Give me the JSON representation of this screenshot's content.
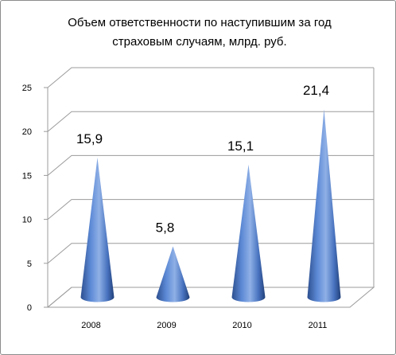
{
  "chart_data": {
    "type": "bar",
    "subtype": "3d-cone",
    "title_lines": [
      "Объем ответственности по наступившим за год",
      "страховым случаям, млрд. руб."
    ],
    "categories": [
      "2008",
      "2009",
      "2010",
      "2011"
    ],
    "values": [
      15.9,
      5.8,
      15.1,
      21.4
    ],
    "data_labels": [
      "15,9",
      "5,8",
      "15,1",
      "21,4"
    ],
    "y_ticks": [
      "0",
      "5",
      "10",
      "15",
      "20",
      "25"
    ],
    "ylim": [
      0,
      25
    ],
    "grid": true,
    "legend": "none",
    "colors": {
      "cone_light": "#9dbbec",
      "cone_mid": "#4f7cc9",
      "cone_dark": "#23407a",
      "grid": "#9b9b9b",
      "wall": "#ffffff"
    }
  }
}
